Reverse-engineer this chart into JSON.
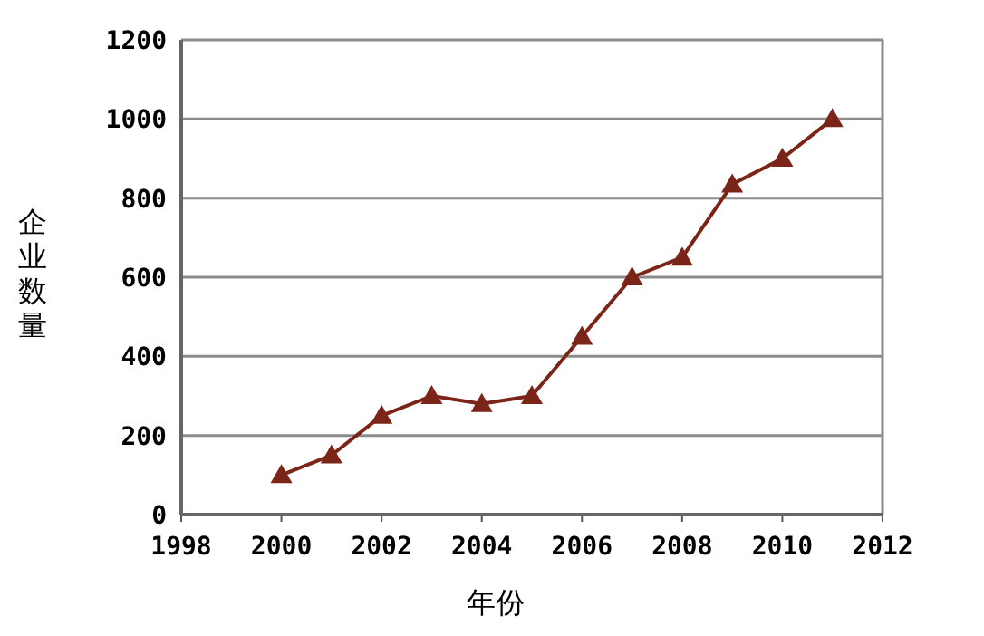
{
  "chart_data": {
    "type": "line",
    "xlabel": "年份",
    "ylabel": "企业数量",
    "x": [
      2000,
      2001,
      2002,
      2003,
      2004,
      2005,
      2006,
      2007,
      2008,
      2009,
      2010,
      2011
    ],
    "series": [
      {
        "color": "#7b2418",
        "values": [
          100,
          150,
          250,
          300,
          280,
          300,
          450,
          600,
          650,
          835,
          900,
          1000
        ]
      }
    ],
    "xlim": [
      1998,
      2012
    ],
    "xticks": [
      1998,
      2000,
      2002,
      2004,
      2006,
      2008,
      2010,
      2012
    ],
    "ylim": [
      0,
      1200
    ],
    "yticks": [
      0,
      200,
      400,
      600,
      800,
      1000,
      1200
    ],
    "grid": "y",
    "marker": "triangle",
    "line_style": "solid"
  }
}
